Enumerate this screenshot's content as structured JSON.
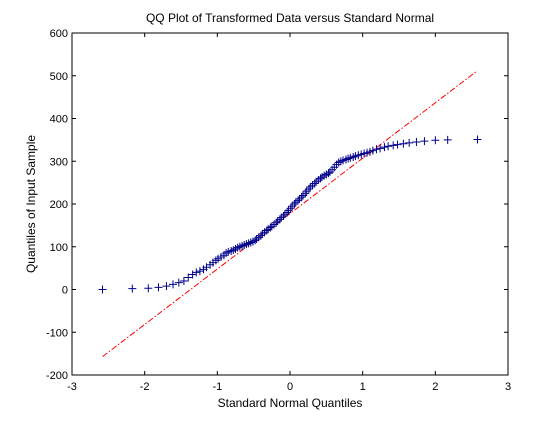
{
  "chart_data": {
    "type": "scatter",
    "title": "QQ Plot of Transformed Data versus Standard Normal",
    "xlabel": "Standard Normal Quantiles",
    "ylabel": "Quantiles of Input Sample",
    "xlim": [
      -3,
      3
    ],
    "ylim": [
      -200,
      600
    ],
    "xticks": [
      -3,
      -2,
      -1,
      0,
      1,
      2,
      3
    ],
    "yticks": [
      -200,
      -100,
      0,
      100,
      200,
      300,
      400,
      500,
      600
    ],
    "grid": false,
    "legend": "none",
    "marker": "+",
    "marker_color": "#00008b",
    "reference_line": {
      "style": "dash-dot",
      "color": "#ff0000",
      "x": [
        -2.58,
        2.58
      ],
      "y": [
        -157,
        512
      ]
    },
    "points": {
      "x": [
        -2.58,
        -2.17,
        -1.95,
        -1.81,
        -1.7,
        -1.61,
        -1.53,
        -1.46,
        -1.4,
        -1.34,
        -1.29,
        -1.24,
        -1.19,
        -1.15,
        -1.1,
        -1.06,
        -1.02,
        -0.99,
        -0.95,
        -0.91,
        -0.88,
        -0.85,
        -0.81,
        -0.78,
        -0.75,
        -0.72,
        -0.69,
        -0.66,
        -0.63,
        -0.6,
        -0.57,
        -0.54,
        -0.51,
        -0.48,
        -0.46,
        -0.43,
        -0.4,
        -0.38,
        -0.35,
        -0.32,
        -0.3,
        -0.27,
        -0.25,
        -0.22,
        -0.19,
        -0.17,
        -0.14,
        -0.12,
        -0.09,
        -0.07,
        -0.04,
        -0.02,
        0.01,
        0.03,
        0.06,
        0.08,
        0.11,
        0.13,
        0.16,
        0.18,
        0.21,
        0.23,
        0.26,
        0.28,
        0.31,
        0.34,
        0.36,
        0.39,
        0.42,
        0.44,
        0.47,
        0.5,
        0.53,
        0.55,
        0.58,
        0.61,
        0.64,
        0.67,
        0.7,
        0.73,
        0.77,
        0.8,
        0.83,
        0.87,
        0.9,
        0.94,
        0.98,
        1.02,
        1.06,
        1.1,
        1.14,
        1.19,
        1.24,
        1.3,
        1.35,
        1.42,
        1.48,
        1.56,
        1.64,
        1.74,
        1.85,
        2.0,
        2.17,
        2.58
      ],
      "y": [
        0,
        2,
        3,
        5,
        8,
        12,
        16,
        20,
        28,
        35,
        40,
        43,
        47,
        52,
        58,
        63,
        68,
        72,
        76,
        80,
        85,
        88,
        90,
        92,
        95,
        98,
        100,
        102,
        104,
        106,
        108,
        110,
        112,
        115,
        118,
        122,
        126,
        130,
        134,
        138,
        141,
        145,
        148,
        152,
        156,
        160,
        164,
        168,
        172,
        176,
        180,
        185,
        190,
        195,
        200,
        204,
        208,
        212,
        216,
        220,
        225,
        230,
        235,
        240,
        244,
        248,
        252,
        256,
        260,
        263,
        266,
        269,
        272,
        275,
        280,
        286,
        292,
        297,
        300,
        302,
        304,
        306,
        308,
        310,
        312,
        314,
        316,
        318,
        320,
        322,
        325,
        328,
        330,
        333,
        335,
        337,
        339,
        341,
        343,
        345,
        347,
        349,
        350,
        351
      ]
    }
  }
}
